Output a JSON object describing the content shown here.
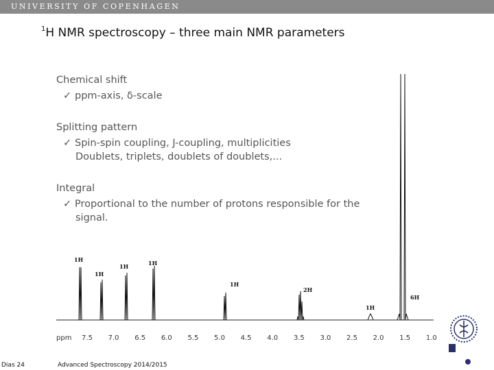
{
  "header": {
    "university": "UNIVERSITY OF COPENHAGEN"
  },
  "title": {
    "superscript": "1",
    "text": "H NMR spectroscopy – three main NMR parameters"
  },
  "content": {
    "chemical_shift": {
      "heading": "Chemical shift",
      "bullet": "ppm-axis, δ-scale"
    },
    "splitting": {
      "heading": "Splitting pattern",
      "bullet": "Spin-spin coupling, J-coupling, multiplicities",
      "continuation": "Doublets, triplets, doublets of doublets,..."
    },
    "integral": {
      "heading": "Integral",
      "bullet": "Proportional to the number of protons responsible for the",
      "continuation": "signal."
    },
    "check_mark": "✓"
  },
  "spectrum": {
    "axis_unit": "ppm",
    "ticks": [
      "7.5",
      "7.0",
      "6.5",
      "6.0",
      "5.5",
      "5.0",
      "4.5",
      "4.0",
      "3.5",
      "3.0",
      "2.5",
      "2.0",
      "1.5",
      "1.0"
    ],
    "peak_labels": [
      "1H",
      "1H",
      "1H",
      "1H",
      "1H",
      "2H",
      "1H",
      "6H"
    ]
  },
  "footer": {
    "slide": "Dias 24",
    "course": "Advanced Spectroscopy 2014/2015"
  }
}
